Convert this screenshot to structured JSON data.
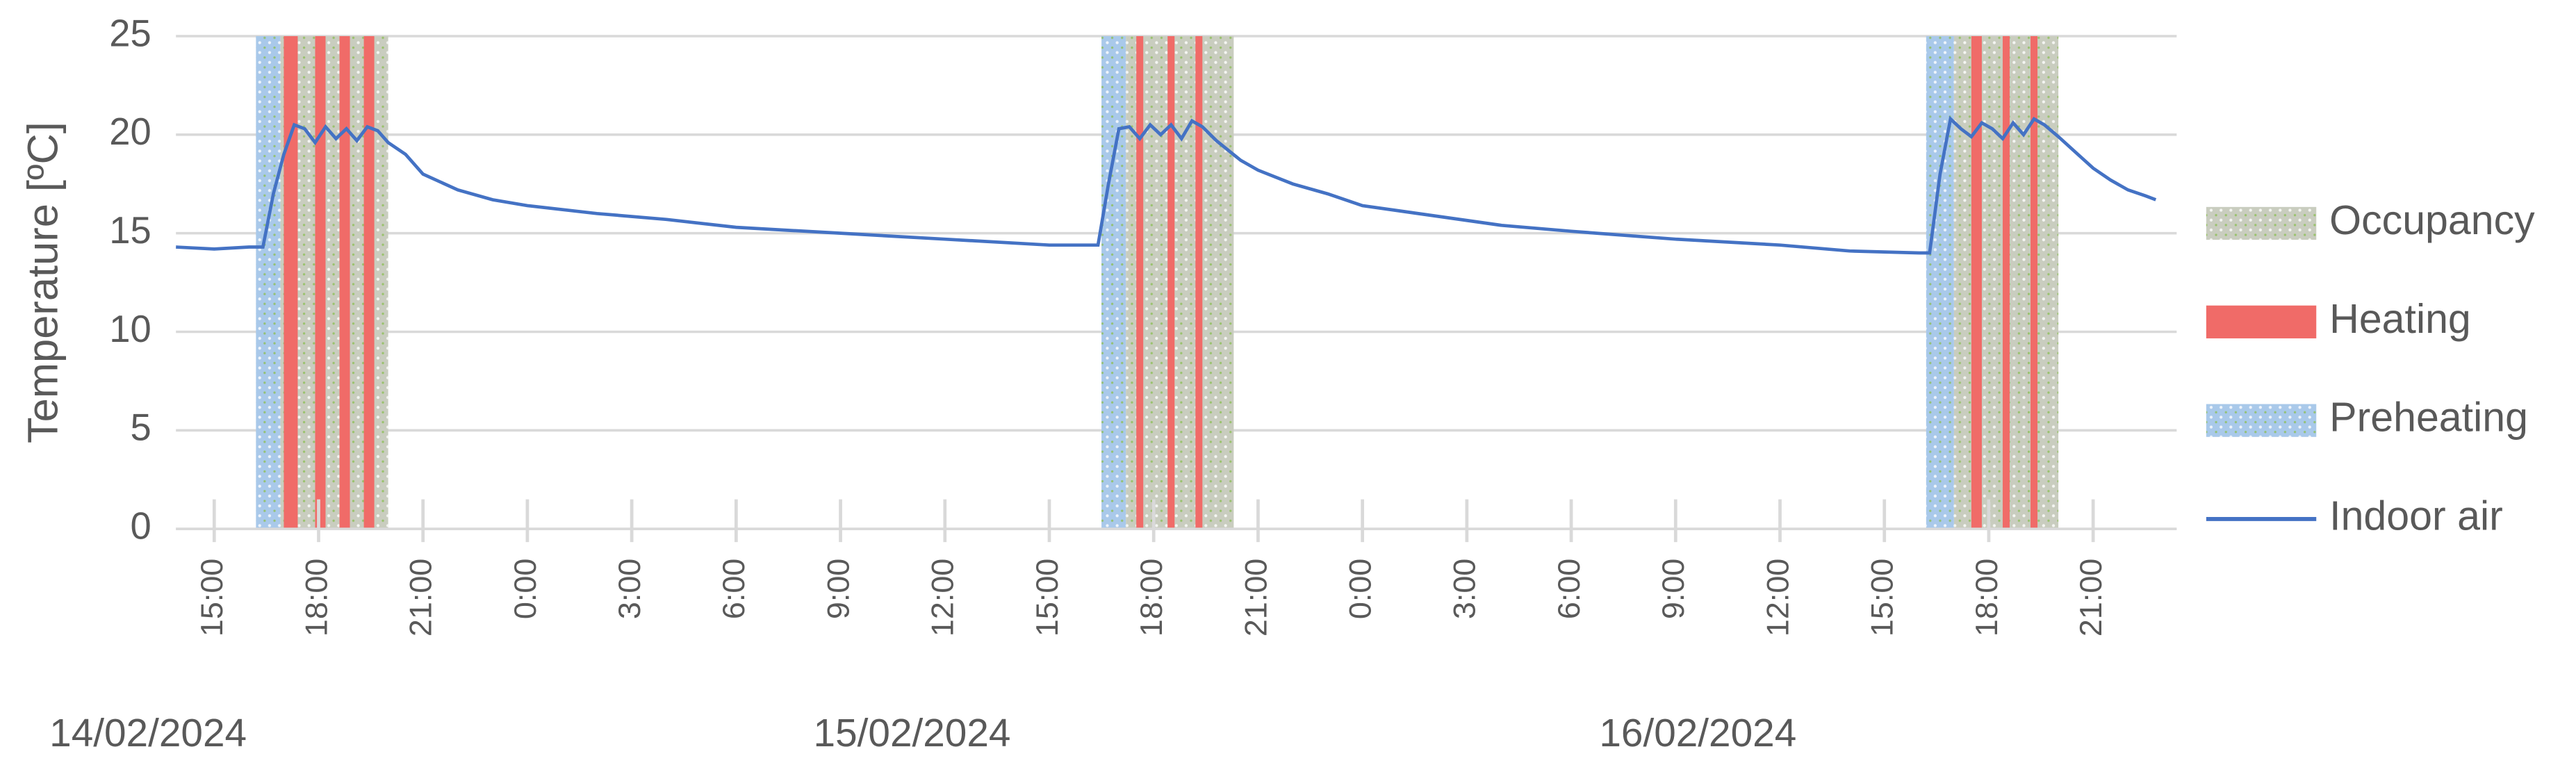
{
  "chart_data": {
    "type": "line",
    "ylabel": "Temperature [ºC]",
    "xlim": [
      13.9,
      71.4
    ],
    "ylim": [
      0,
      25
    ],
    "yticks": [
      0,
      5,
      10,
      15,
      20,
      25
    ],
    "grid": true,
    "xticks": [
      {
        "value": 15,
        "label": "15:00"
      },
      {
        "value": 18,
        "label": "18:00"
      },
      {
        "value": 21,
        "label": "21:00"
      },
      {
        "value": 24,
        "label": "0:00"
      },
      {
        "value": 27,
        "label": "3:00"
      },
      {
        "value": 30,
        "label": "6:00"
      },
      {
        "value": 33,
        "label": "9:00"
      },
      {
        "value": 36,
        "label": "12:00"
      },
      {
        "value": 39,
        "label": "15:00"
      },
      {
        "value": 42,
        "label": "18:00"
      },
      {
        "value": 45,
        "label": "21:00"
      },
      {
        "value": 48,
        "label": "0:00"
      },
      {
        "value": 51,
        "label": "3:00"
      },
      {
        "value": 54,
        "label": "6:00"
      },
      {
        "value": 57,
        "label": "9:00"
      },
      {
        "value": 60,
        "label": "12:00"
      },
      {
        "value": 63,
        "label": "15:00"
      },
      {
        "value": 66,
        "label": "18:00"
      },
      {
        "value": 69,
        "label": "21:00"
      }
    ],
    "date_labels": [
      "14/02/2024",
      "15/02/2024",
      "16/02/2024"
    ],
    "bands": [
      {
        "name": "Occupancy",
        "color": "#c9cdbf",
        "pattern": "dotted",
        "intervals": [
          [
            16.9,
            20.0
          ],
          [
            41.2,
            44.3
          ],
          [
            65.0,
            68.0
          ]
        ]
      },
      {
        "name": "Preheating",
        "color": "#a9c9ea",
        "pattern": "dotted",
        "intervals": [
          [
            16.2,
            16.9
          ],
          [
            40.5,
            41.2
          ],
          [
            64.2,
            65.0
          ]
        ]
      },
      {
        "name": "Heating",
        "color": "#f06b68",
        "pattern": "solid",
        "intervals": [
          [
            17.0,
            17.4
          ],
          [
            17.9,
            18.2
          ],
          [
            18.6,
            18.9
          ],
          [
            19.3,
            19.6
          ],
          [
            41.5,
            41.7
          ],
          [
            42.4,
            42.6
          ],
          [
            43.2,
            43.4
          ],
          [
            65.5,
            65.8
          ],
          [
            66.4,
            66.6
          ],
          [
            67.2,
            67.4
          ]
        ]
      }
    ],
    "legend_order": [
      "Occupancy",
      "Heating",
      "Preheating",
      "Indoor air"
    ],
    "series": [
      {
        "name": "Indoor air",
        "color": "#4472c4",
        "x": [
          13.9,
          15,
          16,
          16.4,
          16.7,
          17.0,
          17.3,
          17.6,
          17.9,
          18.2,
          18.5,
          18.8,
          19.1,
          19.4,
          19.7,
          20.0,
          20.5,
          21,
          22,
          23,
          24,
          26,
          28,
          30,
          33,
          36,
          39,
          40,
          40.4,
          40.7,
          41,
          41.3,
          41.6,
          41.9,
          42.2,
          42.5,
          42.8,
          43.1,
          43.4,
          43.8,
          44.5,
          45,
          46,
          47,
          48,
          50,
          52,
          54,
          57,
          60,
          62,
          64,
          64.3,
          64.6,
          64.9,
          65.2,
          65.5,
          65.8,
          66.1,
          66.4,
          66.7,
          67,
          67.3,
          67.6,
          68,
          68.5,
          69,
          69.5,
          70,
          70.5,
          70.8
        ],
        "values": [
          14.3,
          14.2,
          14.3,
          14.3,
          17,
          19,
          20.5,
          20.3,
          19.6,
          20.4,
          19.8,
          20.3,
          19.7,
          20.4,
          20.2,
          19.6,
          19.0,
          18.0,
          17.2,
          16.7,
          16.4,
          16.0,
          15.7,
          15.3,
          15.0,
          14.7,
          14.4,
          14.4,
          14.4,
          17.5,
          20.3,
          20.4,
          19.8,
          20.5,
          20.0,
          20.5,
          19.8,
          20.7,
          20.4,
          19.7,
          18.7,
          18.2,
          17.5,
          17.0,
          16.4,
          15.9,
          15.4,
          15.1,
          14.7,
          14.4,
          14.1,
          14.0,
          14.0,
          18,
          20.8,
          20.3,
          19.9,
          20.6,
          20.3,
          19.8,
          20.6,
          20.0,
          20.8,
          20.5,
          19.9,
          19.1,
          18.3,
          17.7,
          17.2,
          16.9,
          16.7
        ]
      }
    ]
  }
}
